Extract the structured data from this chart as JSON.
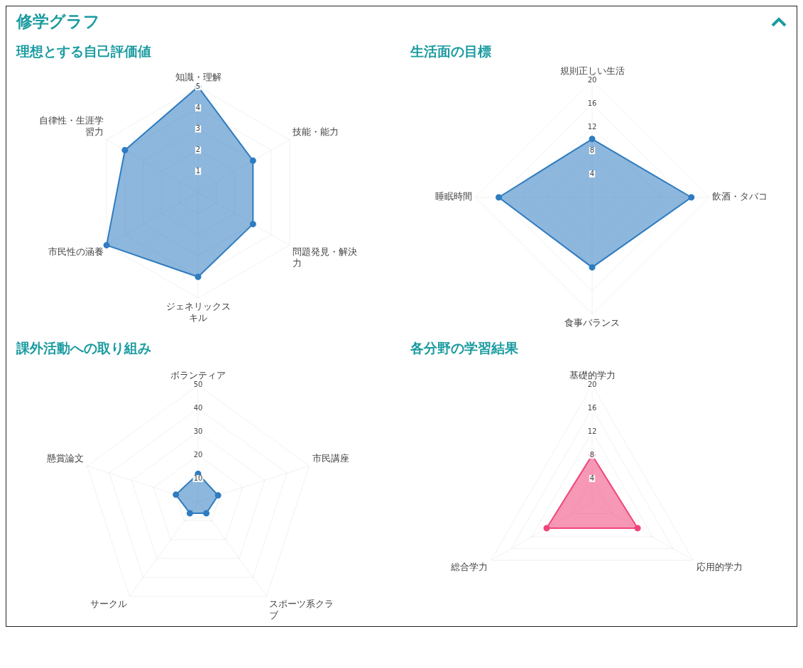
{
  "chart_data": [
    {
      "type": "other",
      "title": "修学グラフ"
    },
    {
      "type": "radar",
      "title": "理想とする自己評価値",
      "categories": [
        "知識・理解",
        "技能・能力",
        "問題発見・解決力",
        "ジェネリックスキル",
        "市民性の涵養",
        "自律性・生涯学習力"
      ],
      "series": [
        {
          "color": "#2f7cc0",
          "values": [
            5,
            3,
            3,
            4,
            5,
            4
          ]
        }
      ],
      "ylim": [
        0,
        5
      ],
      "yticks": [
        1,
        2,
        3,
        4,
        5
      ],
      "grid": true,
      "marker": "circle"
    },
    {
      "type": "radar",
      "title": "生活面の目標",
      "categories": [
        "規則正しい生活",
        "飲酒・タバコ",
        "食事バランス",
        "睡眠時間"
      ],
      "series": [
        {
          "color": "#2f7cc0",
          "values": [
            10,
            17,
            12,
            16
          ]
        }
      ],
      "ylim": [
        0,
        20
      ],
      "yticks": [
        4,
        8,
        12,
        16,
        20
      ],
      "grid": true,
      "marker": "circle"
    },
    {
      "type": "radar",
      "title": "課外活動への取り組み",
      "categories": [
        "ボランティア",
        "市民講座",
        "スポーツ系クラブ",
        "サークル",
        "懸賞論文"
      ],
      "series": [
        {
          "color": "#2f7cc0",
          "values": [
            12,
            9,
            6,
            6,
            10
          ]
        }
      ],
      "ylim": [
        0,
        50
      ],
      "yticks": [
        10,
        20,
        30,
        40,
        50
      ],
      "grid": true,
      "marker": "circle"
    },
    {
      "type": "radar",
      "title": "各分野の学習結果",
      "categories": [
        "基礎的学力",
        "応用的学力",
        "総合学力"
      ],
      "series": [
        {
          "color": "#f0457a",
          "values": [
            8,
            9,
            9
          ]
        }
      ],
      "ylim": [
        0,
        20
      ],
      "yticks": [
        4,
        8,
        12,
        16,
        20
      ],
      "grid": true,
      "marker": "circle"
    }
  ]
}
